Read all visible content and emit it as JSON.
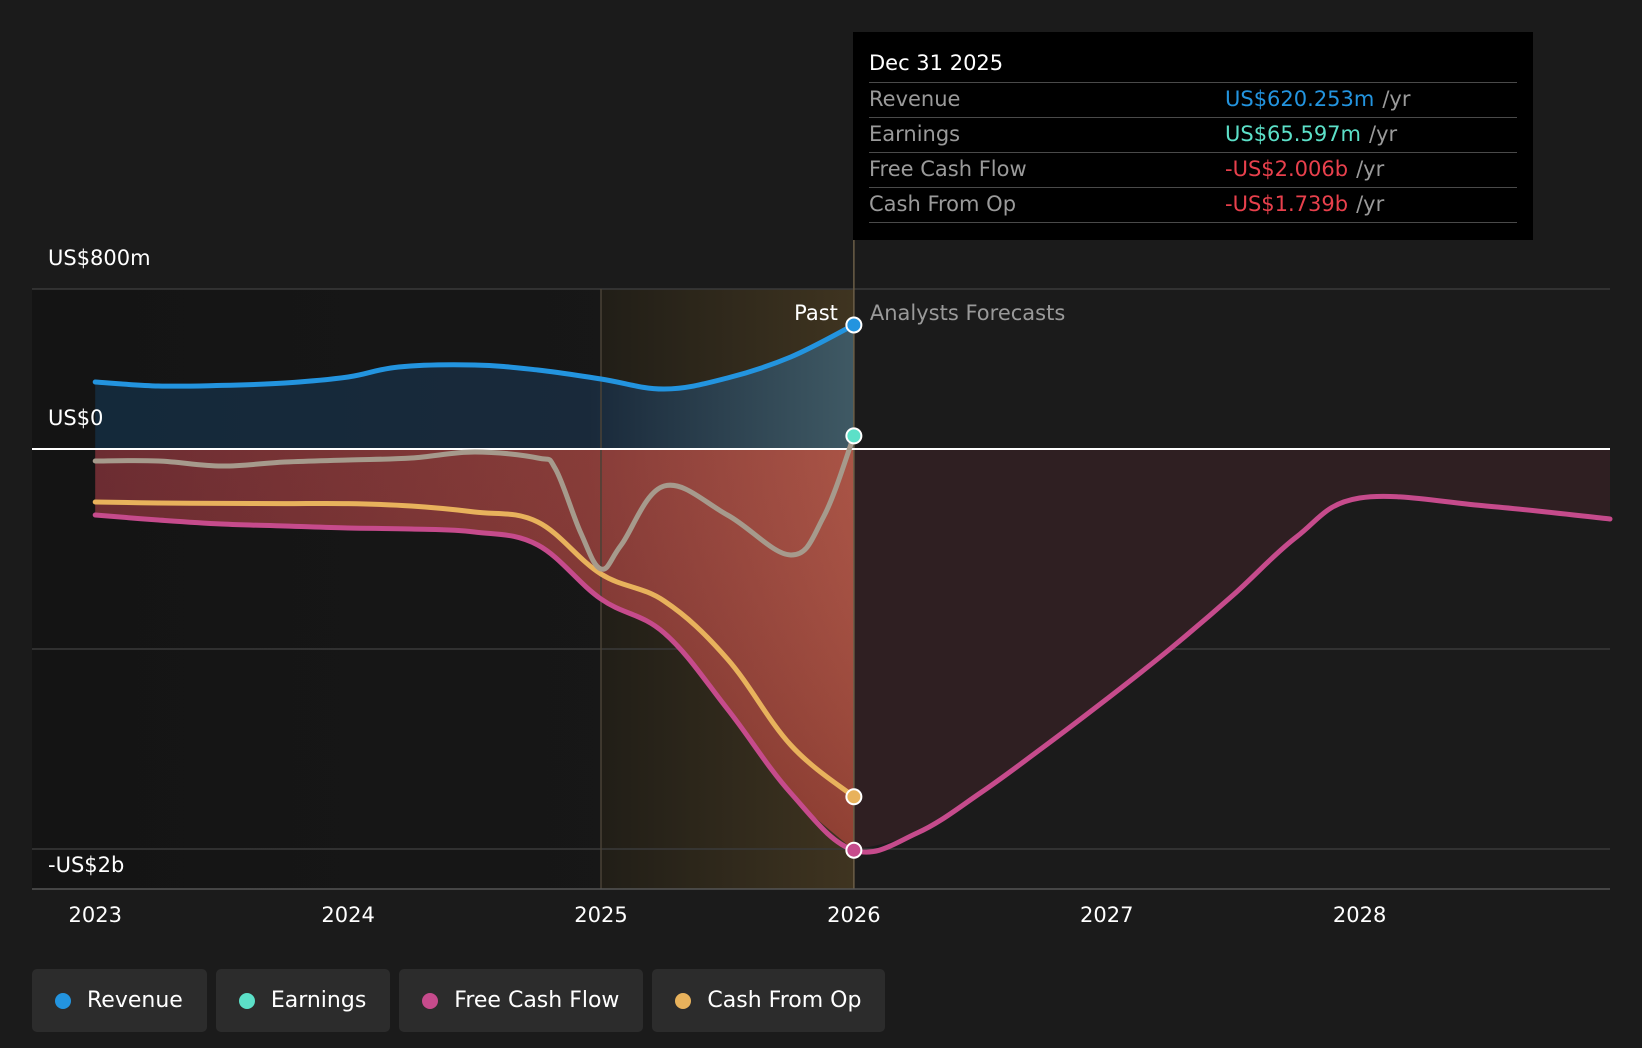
{
  "tooltip": {
    "date": "Dec 31 2025",
    "rows": [
      {
        "label": "Revenue",
        "value": "US$620.253m",
        "unit": "/yr",
        "color": "#2394df"
      },
      {
        "label": "Earnings",
        "value": "US$65.597m",
        "unit": "/yr",
        "color": "#5ce0c8"
      },
      {
        "label": "Free Cash Flow",
        "value": "-US$2.006b",
        "unit": "/yr",
        "color": "#e8404c"
      },
      {
        "label": "Cash From Op",
        "value": "-US$1.739b",
        "unit": "/yr",
        "color": "#e8404c"
      }
    ]
  },
  "chart_data": {
    "type": "line",
    "y_tick_labels": [
      {
        "value": 800,
        "label": "US$800m"
      },
      {
        "value": 0,
        "label": "US$0"
      },
      {
        "value": -2000,
        "label": "-US$2b"
      }
    ],
    "ylim": [
      -2200,
      800
    ],
    "xlim": [
      2022.75,
      2028.99
    ],
    "x_ticks": [
      2023,
      2024,
      2025,
      2026,
      2027,
      2028
    ],
    "x_tick_labels": [
      "2023",
      "2024",
      "2025",
      "2026",
      "2027",
      "2028"
    ],
    "past_label": "Past",
    "forecast_label": "Analysts Forecasts",
    "divider_x": 2026.0,
    "highlight_start_x": 2025.0,
    "grid": true,
    "series": [
      {
        "name": "Revenue",
        "color": "#2394df",
        "x": [
          2023.0,
          2023.25,
          2023.5,
          2023.75,
          2024.0,
          2024.2,
          2024.5,
          2024.75,
          2025.0,
          2025.25,
          2025.5,
          2025.75,
          2026.0
        ],
        "y": [
          335,
          315,
          318,
          330,
          360,
          410,
          420,
          395,
          350,
          300,
          355,
          460,
          620.253
        ]
      },
      {
        "name": "Earnings",
        "color": "#5ce0c8",
        "line_color": "#a69a8c",
        "x": [
          2023.0,
          2023.25,
          2023.5,
          2023.75,
          2024.0,
          2024.25,
          2024.5,
          2024.75,
          2024.82,
          2024.92,
          2025.0,
          2025.08,
          2025.25,
          2025.5,
          2025.75,
          2025.88,
          2026.0
        ],
        "y": [
          -60,
          -60,
          -85,
          -65,
          -55,
          -45,
          -15,
          -45,
          -100,
          -420,
          -600,
          -480,
          -185,
          -330,
          -530,
          -340,
          65.597
        ]
      },
      {
        "name": "Free Cash Flow",
        "color": "#c64b8c",
        "x": [
          2023.0,
          2023.25,
          2023.5,
          2023.75,
          2024.0,
          2024.25,
          2024.5,
          2024.75,
          2025.0,
          2025.25,
          2025.5,
          2025.75,
          2026.0,
          2026.25,
          2026.5,
          2026.75,
          2027.0,
          2027.25,
          2027.5,
          2027.75,
          2028.0,
          2028.5,
          2028.99
        ],
        "y": [
          -330,
          -355,
          -375,
          -385,
          -395,
          -400,
          -415,
          -480,
          -750,
          -920,
          -1300,
          -1720,
          -2006,
          -1920,
          -1720,
          -1490,
          -1250,
          -1000,
          -730,
          -440,
          -245,
          -285,
          -350
        ]
      },
      {
        "name": "Cash From Op",
        "color": "#e8b25c",
        "x": [
          2023.0,
          2023.25,
          2023.5,
          2023.75,
          2024.0,
          2024.25,
          2024.5,
          2024.75,
          2025.0,
          2025.25,
          2025.5,
          2025.75,
          2026.0
        ],
        "y": [
          -265,
          -270,
          -272,
          -273,
          -273,
          -285,
          -315,
          -365,
          -625,
          -760,
          -1050,
          -1480,
          -1739
        ]
      }
    ]
  },
  "legend": [
    {
      "label": "Revenue",
      "color": "#2394df"
    },
    {
      "label": "Earnings",
      "color": "#5ce0c8"
    },
    {
      "label": "Free Cash Flow",
      "color": "#c64b8c"
    },
    {
      "label": "Cash From Op",
      "color": "#e8b25c"
    }
  ]
}
